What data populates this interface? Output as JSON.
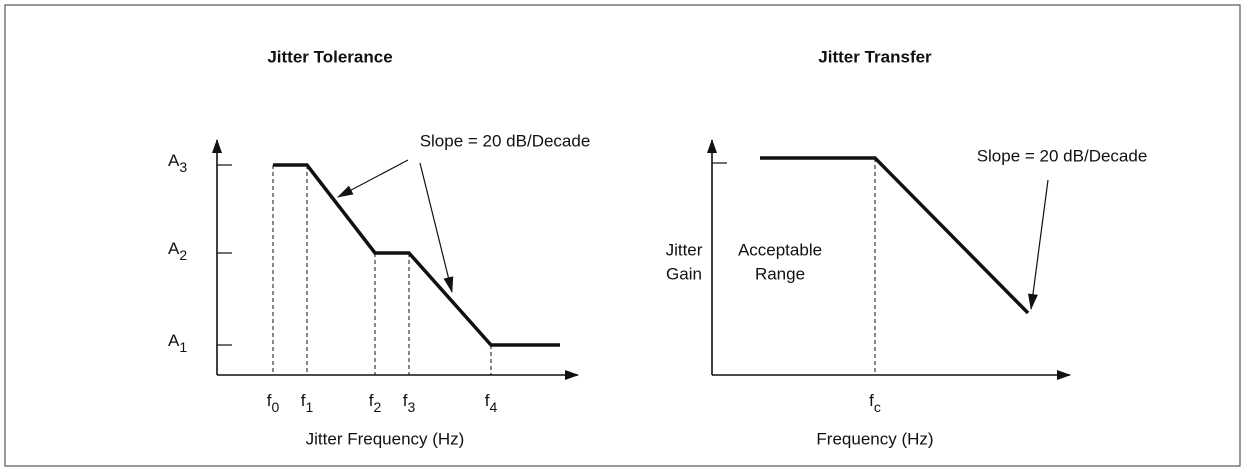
{
  "left": {
    "title": "Jitter Tolerance",
    "x_label": "Jitter Frequency (Hz)",
    "slope_label": "Slope = 20 dB/Decade",
    "y_ticks": [
      {
        "main": "A",
        "sub": "3"
      },
      {
        "main": "A",
        "sub": "2"
      },
      {
        "main": "A",
        "sub": "1"
      }
    ],
    "x_ticks": [
      {
        "main": "f",
        "sub": "0"
      },
      {
        "main": "f",
        "sub": "1"
      },
      {
        "main": "f",
        "sub": "2"
      },
      {
        "main": "f",
        "sub": "3"
      },
      {
        "main": "f",
        "sub": "4"
      }
    ]
  },
  "right": {
    "title": "Jitter Transfer",
    "x_label": "Frequency (Hz)",
    "slope_label": "Slope = 20 dB/Decade",
    "y_label": [
      "Jitter",
      "Gain"
    ],
    "region_label": [
      "Acceptable",
      "Range"
    ],
    "x_ticks": [
      {
        "main": "f",
        "sub": "c"
      }
    ]
  }
}
